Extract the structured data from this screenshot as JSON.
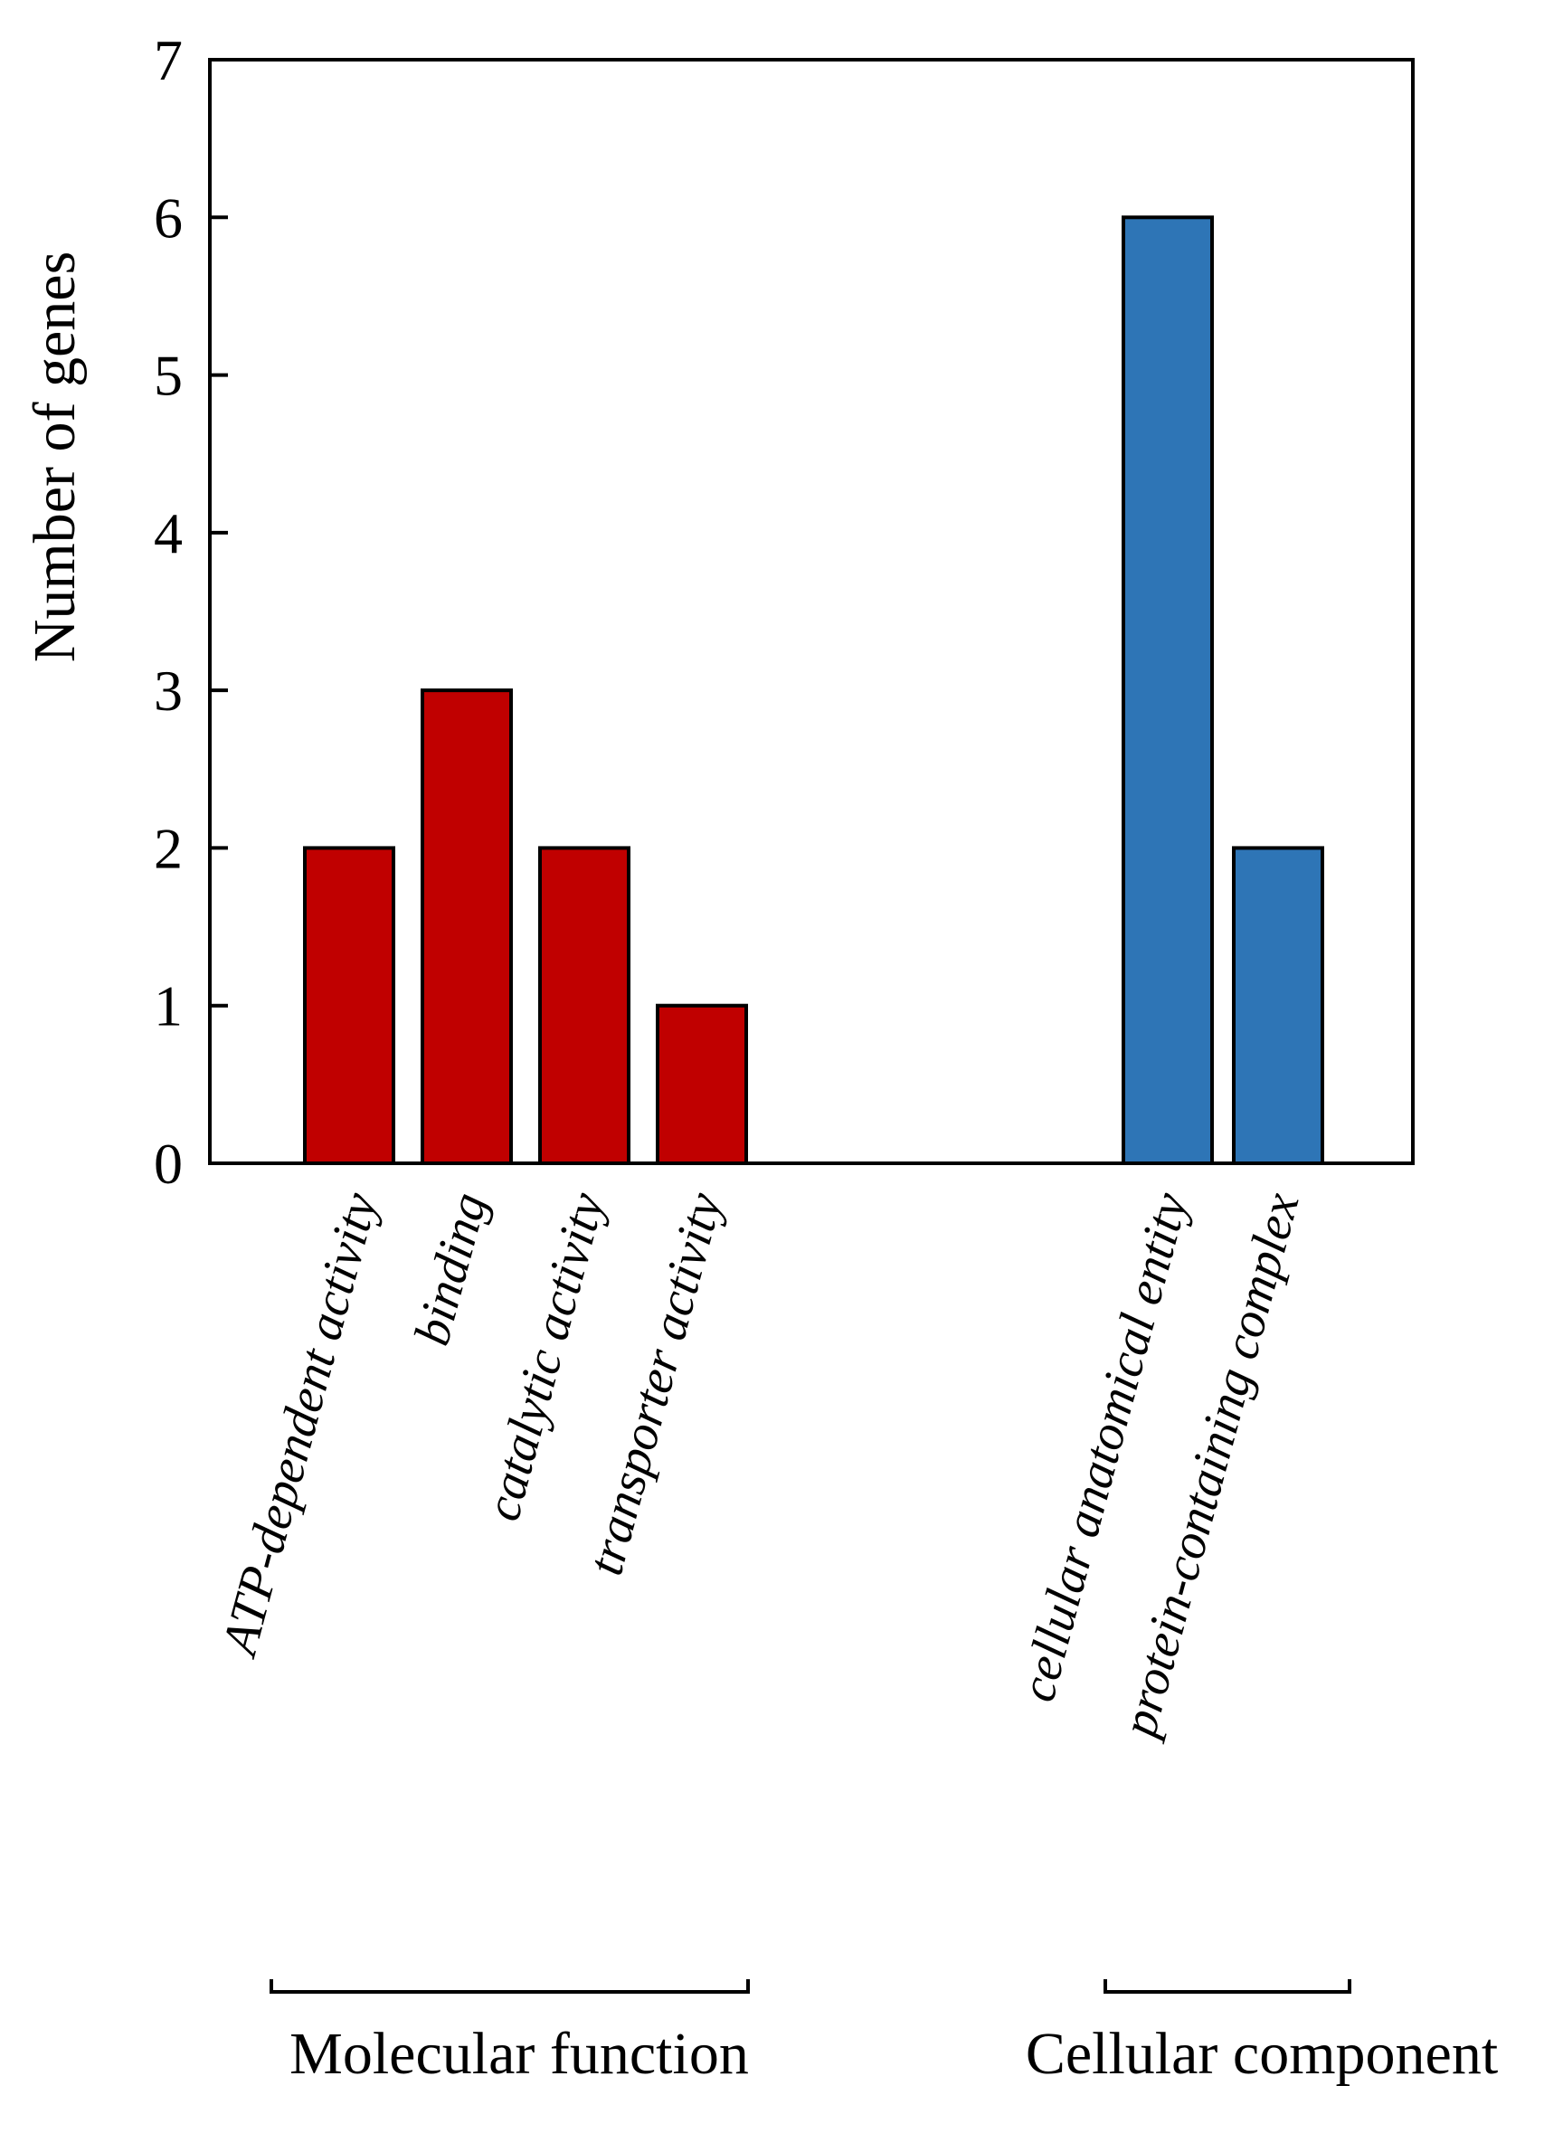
{
  "chart_data": {
    "type": "bar",
    "title": "",
    "xlabel": "",
    "ylabel": "Number of genes",
    "ylim": [
      0,
      7
    ],
    "yticks": [
      0,
      1,
      2,
      3,
      4,
      5,
      6,
      7
    ],
    "grid": false,
    "groups": [
      {
        "name": "Molecular function",
        "color": "#c00000",
        "categories": [
          "ATP-dependent activity",
          "binding",
          "catalytic activity",
          "transporter activity"
        ],
        "values": [
          2,
          3,
          2,
          1
        ]
      },
      {
        "name": "Cellular component",
        "color": "#2e75b6",
        "categories": [
          "cellular anatomical entity",
          "protein-containing complex"
        ],
        "values": [
          6,
          2
        ]
      }
    ]
  }
}
